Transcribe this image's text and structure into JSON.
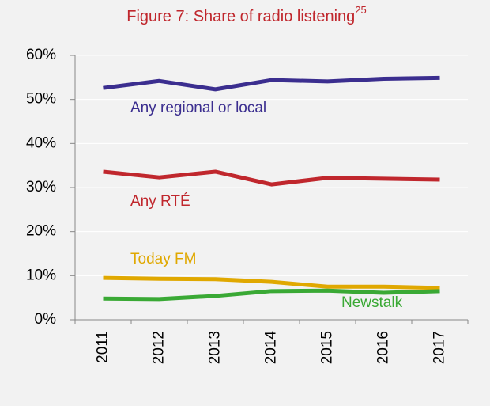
{
  "chart_data": {
    "type": "line",
    "title": "Figure 7: Share of radio listening",
    "title_superscript": "25",
    "categories": [
      "2011",
      "2012",
      "2013",
      "2014",
      "2015",
      "2016",
      "2017"
    ],
    "series": [
      {
        "name": "Any regional or local",
        "color": "#3b2e8f",
        "values": [
          52.6,
          54.2,
          52.3,
          54.4,
          54.1,
          54.7,
          54.9
        ]
      },
      {
        "name": "Any RTÉ",
        "color": "#c0272d",
        "values": [
          33.6,
          32.3,
          33.6,
          30.7,
          32.2,
          32.0,
          31.8
        ]
      },
      {
        "name": "Today FM",
        "color": "#e0a800",
        "values": [
          9.5,
          9.3,
          9.2,
          8.6,
          7.5,
          7.5,
          7.2
        ]
      },
      {
        "name": "Newstalk",
        "color": "#3aa935",
        "values": [
          4.8,
          4.7,
          5.4,
          6.5,
          6.6,
          6.1,
          6.5
        ]
      }
    ],
    "ylim": [
      0,
      60
    ],
    "yticks": [
      {
        "value": 0,
        "label": "0%"
      },
      {
        "value": 10,
        "label": "10%"
      },
      {
        "value": 20,
        "label": "20%"
      },
      {
        "value": 30,
        "label": "30%"
      },
      {
        "value": 40,
        "label": "40%"
      },
      {
        "value": 50,
        "label": "50%"
      },
      {
        "value": 60,
        "label": "60%"
      }
    ],
    "grid": true
  }
}
